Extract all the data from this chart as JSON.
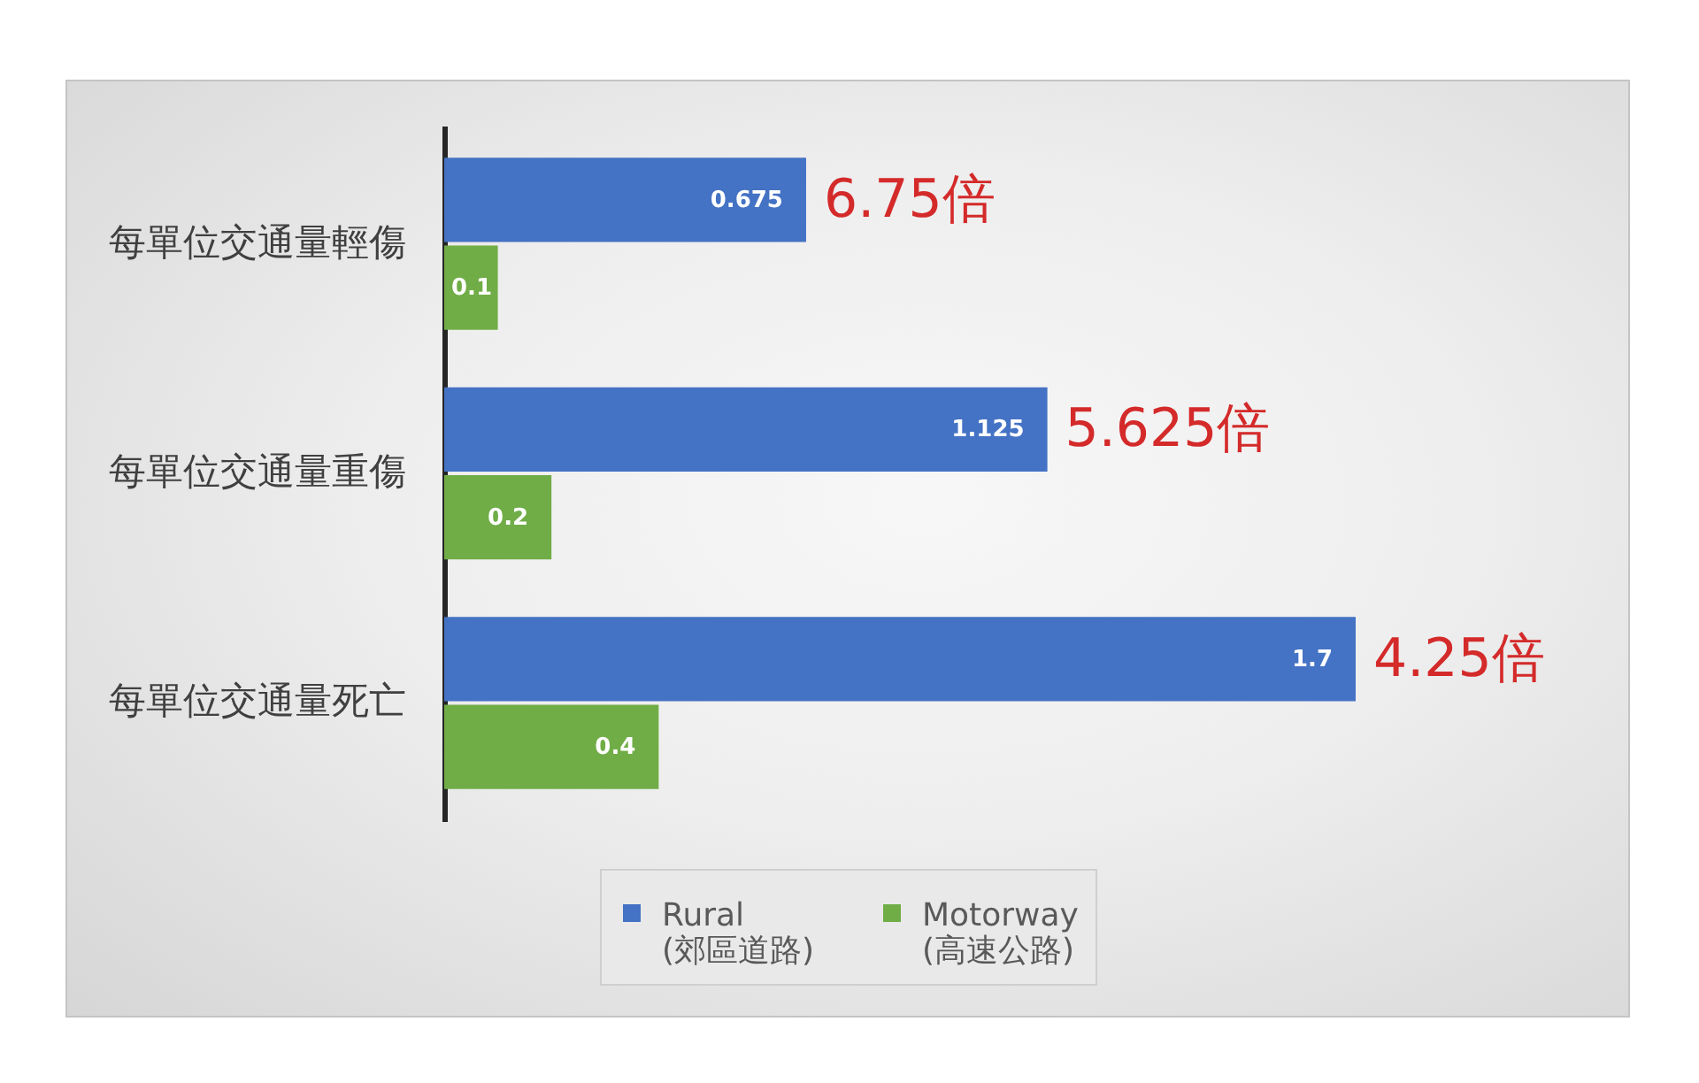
{
  "chart_data": {
    "type": "bar",
    "orientation": "horizontal",
    "categories": [
      "每單位交通量輕傷",
      "每單位交通量重傷",
      "每單位交通量死亡"
    ],
    "series": [
      {
        "name": "Rural\n(郊區道路)",
        "color": "#4472c4",
        "values": [
          0.675,
          1.125,
          1.7
        ]
      },
      {
        "name": "Motorway\n(高速公路)",
        "color": "#70ad47",
        "values": [
          0.1,
          0.2,
          0.4
        ]
      }
    ],
    "data_labels": true,
    "legend": "bottom",
    "grid": false,
    "tick_labels": "y",
    "annotations": [
      {
        "text": "6.75倍",
        "x": 0.675,
        "y": "每單位交通量輕傷"
      },
      {
        "text": "5.625倍",
        "x": 1.125,
        "y": "每單位交通量重傷"
      },
      {
        "text": "4.25倍",
        "x": 1.7,
        "y": "每單位交通量死亡"
      }
    ]
  }
}
